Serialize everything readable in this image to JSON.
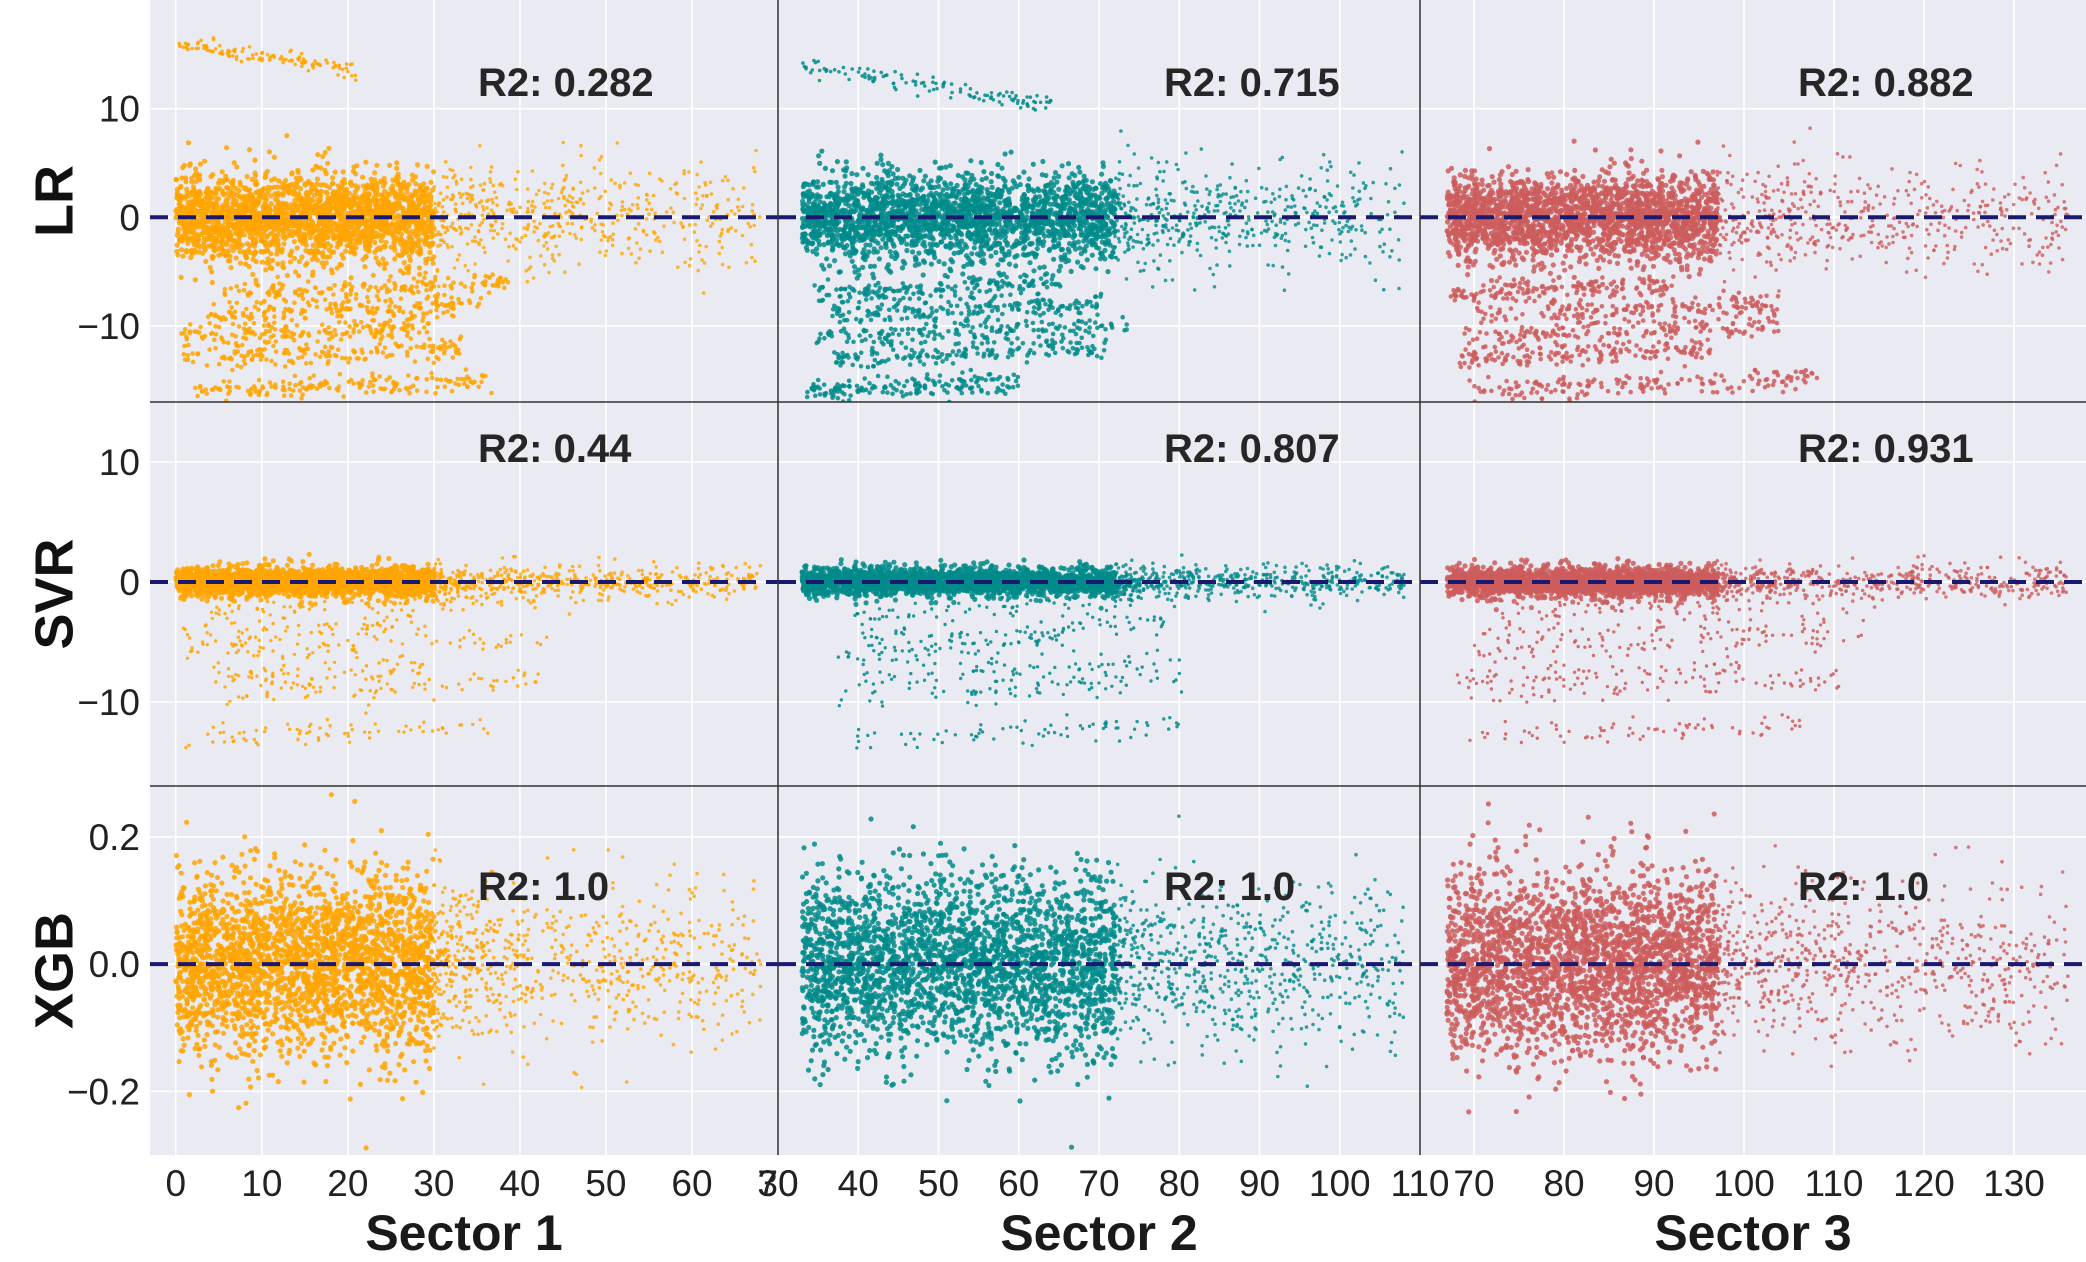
{
  "chart_data": {
    "type": "scatter",
    "description_axis": "residual vs actual value, 3 model rows x 3 sector columns",
    "rows": [
      {
        "model": "LR",
        "yticks": [
          10,
          0,
          -10
        ],
        "ytick_labels": [
          "10",
          "0",
          "−10"
        ],
        "ylim": [
          -17,
          20
        ]
      },
      {
        "model": "SVR",
        "yticks": [
          10,
          0,
          -10
        ],
        "ytick_labels": [
          "10",
          "0",
          "−10"
        ],
        "ylim": [
          -17,
          15
        ]
      },
      {
        "model": "XGB",
        "yticks": [
          0.2,
          0.0,
          -0.2
        ],
        "ytick_labels": [
          "0.2",
          "0.0",
          "−0.2"
        ],
        "ylim": [
          -0.3,
          0.28
        ]
      }
    ],
    "columns": [
      {
        "sector": "Sector 1",
        "xlim": [
          -3,
          70
        ],
        "xticks": [
          0,
          10,
          20,
          30,
          40,
          50,
          60,
          70
        ],
        "color": "#FFA500",
        "bulk_xmax": 30,
        "tail_xmax": 68
      },
      {
        "sector": "Sector 2",
        "xlim": [
          30,
          110
        ],
        "xticks": [
          30,
          40,
          50,
          60,
          70,
          80,
          90,
          100,
          110
        ],
        "color": "#008B8B",
        "bulk_xmax": 72,
        "tail_xmax": 108
      },
      {
        "sector": "Sector 3",
        "xlim": [
          64,
          138
        ],
        "xticks": [
          70,
          80,
          90,
          100,
          110,
          120,
          130
        ],
        "color": "#CD5C5C",
        "bulk_xmax": 97,
        "tail_xmax": 136
      }
    ],
    "r2_labels": [
      [
        "R2: 0.282",
        "R2: 0.715",
        "R2: 0.882"
      ],
      [
        "R2: 0.44",
        "R2: 0.807",
        "R2: 0.931"
      ],
      [
        "R2: 1.0",
        "R2: 1.0",
        "R2: 1.0"
      ]
    ],
    "zero_line": {
      "y": 0,
      "style": "dashed",
      "color": "#191970"
    },
    "grid": true,
    "background": "#EAEAF2"
  }
}
